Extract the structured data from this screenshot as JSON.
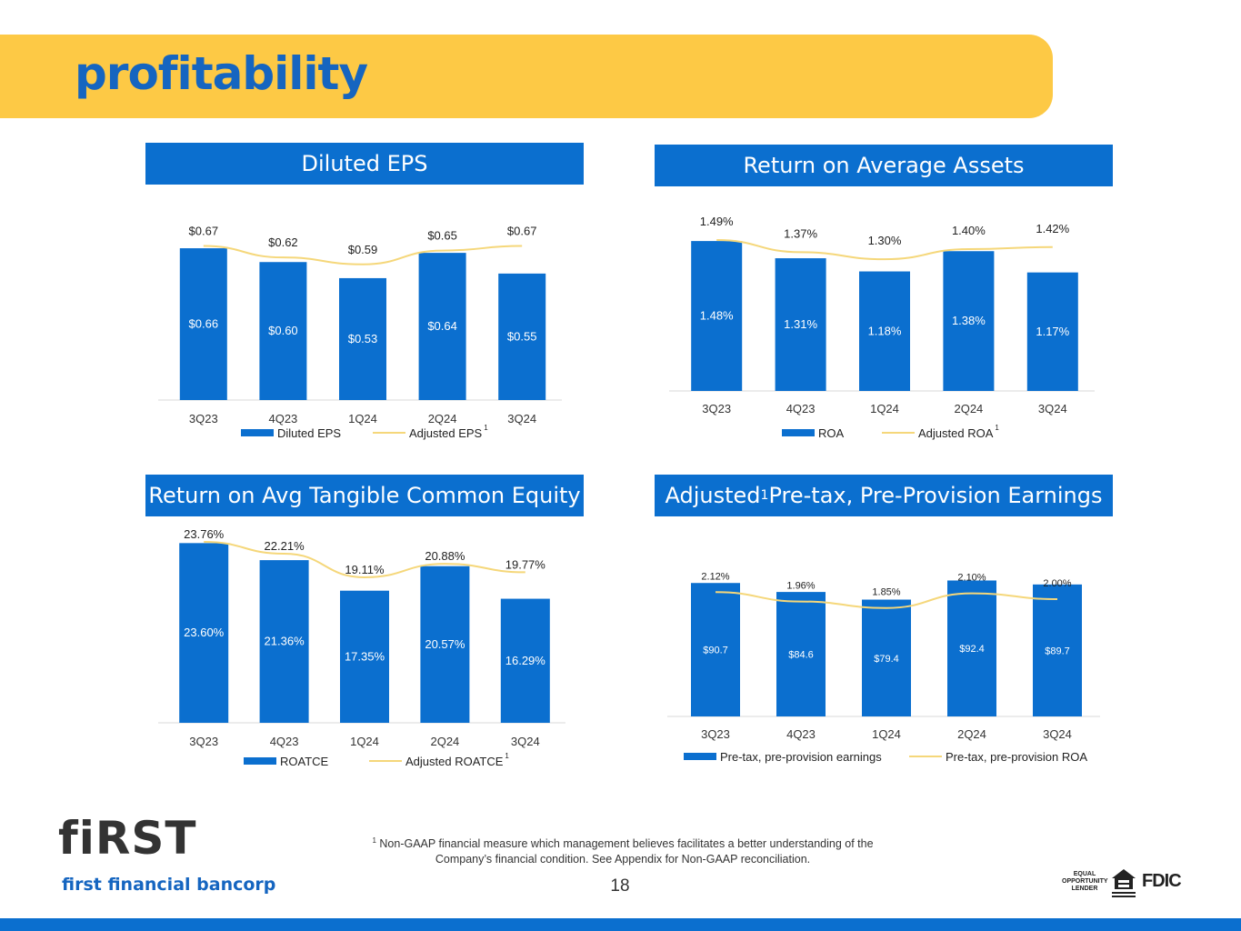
{
  "page": {
    "title": "profitability",
    "page_number": "18",
    "footnote_marker": "1",
    "footnote_line1": "Non-GAAP financial measure which management believes facilitates a better understanding of the",
    "footnote_line2": "Company’s financial condition.  See Appendix for Non-GAAP reconciliation.",
    "logo_word": "fiRST",
    "logo_sub": "first financial bancorp",
    "badge_equal_opportunity": "EQUAL OPPORTUNITY LENDER",
    "badge_fdic": "FDIC",
    "brand_blue": "#0b6fcf",
    "brand_yellow": "#fdc945"
  },
  "panels": [
    {
      "title": "Diluted EPS"
    },
    {
      "title": "Return on Average Assets"
    },
    {
      "title": "Return on Avg Tangible Common Equity"
    },
    {
      "title_pre": "Adjusted",
      "title_sup": "1",
      "title_post": " Pre-tax, Pre-Provision Earnings"
    }
  ],
  "chart_data": [
    {
      "type": "bar",
      "title": "Diluted EPS",
      "categories": [
        "3Q23",
        "4Q23",
        "1Q24",
        "2Q24",
        "3Q24"
      ],
      "series": [
        {
          "name": "Diluted EPS",
          "type": "bar",
          "values": [
            0.66,
            0.6,
            0.53,
            0.64,
            0.55
          ],
          "labels": [
            "$0.66",
            "$0.60",
            "$0.53",
            "$0.64",
            "$0.55"
          ],
          "color": "#0b6fcf"
        },
        {
          "name": "Adjusted EPS",
          "superscript": "1",
          "type": "line",
          "values": [
            0.67,
            0.62,
            0.59,
            0.65,
            0.67
          ],
          "labels": [
            "$0.67",
            "$0.62",
            "$0.59",
            "$0.65",
            "$0.67"
          ],
          "color": "#f5d77a"
        }
      ],
      "ylim": [
        0,
        0.68
      ],
      "legend": "bottom"
    },
    {
      "type": "bar",
      "title": "Return on Average Assets",
      "categories": [
        "3Q23",
        "4Q23",
        "1Q24",
        "2Q24",
        "3Q24"
      ],
      "series": [
        {
          "name": "ROA",
          "type": "bar",
          "values": [
            1.48,
            1.31,
            1.18,
            1.38,
            1.17
          ],
          "labels": [
            "1.48%",
            "1.31%",
            "1.18%",
            "1.38%",
            "1.17%"
          ],
          "color": "#0b6fcf"
        },
        {
          "name": "Adjusted ROA",
          "superscript": "1",
          "type": "line",
          "values": [
            1.49,
            1.37,
            1.3,
            1.4,
            1.42
          ],
          "labels": [
            "1.49%",
            "1.37%",
            "1.30%",
            "1.40%",
            "1.42%"
          ],
          "color": "#f5d77a"
        }
      ],
      "ylim": [
        0,
        1.49
      ],
      "legend": "bottom"
    },
    {
      "type": "bar",
      "title": "Return on Avg Tangible Common Equity",
      "categories": [
        "3Q23",
        "4Q23",
        "1Q24",
        "2Q24",
        "3Q24"
      ],
      "series": [
        {
          "name": "ROATCE",
          "type": "bar",
          "values": [
            23.6,
            21.36,
            17.35,
            20.57,
            16.29
          ],
          "labels": [
            "23.60%",
            "21.36%",
            "17.35%",
            "20.57%",
            "16.29%"
          ],
          "color": "#0b6fcf"
        },
        {
          "name": "Adjusted ROATCE",
          "superscript": "1",
          "type": "line",
          "values": [
            23.76,
            22.21,
            19.11,
            20.88,
            19.77
          ],
          "labels": [
            "23.76%",
            "22.21%",
            "19.11%",
            "20.88%",
            "19.77%"
          ],
          "color": "#f5d77a"
        }
      ],
      "ylim": [
        0,
        23.76
      ],
      "legend": "bottom"
    },
    {
      "type": "bar",
      "title": "Adjusted Pre-tax, Pre-Provision Earnings",
      "categories": [
        "3Q23",
        "4Q23",
        "1Q24",
        "2Q24",
        "3Q24"
      ],
      "series": [
        {
          "name": "Pre-tax, pre-provision earnings",
          "type": "bar",
          "values": [
            90.7,
            84.6,
            79.4,
            92.4,
            89.7
          ],
          "labels": [
            "$90.7",
            "$84.6",
            "$79.4",
            "$92.4",
            "$89.7"
          ],
          "color": "#0b6fcf"
        },
        {
          "name": "Pre-tax, pre-provision ROA",
          "type": "line",
          "values": [
            2.12,
            1.96,
            1.85,
            2.1,
            2.0
          ],
          "labels": [
            "2.12%",
            "1.96%",
            "1.85%",
            "2.10%",
            "2.00%"
          ],
          "color": "#f5d77a"
        }
      ],
      "ylim": [
        0,
        110
      ],
      "line_ylim": [
        0,
        2.45
      ],
      "legend": "bottom"
    }
  ]
}
